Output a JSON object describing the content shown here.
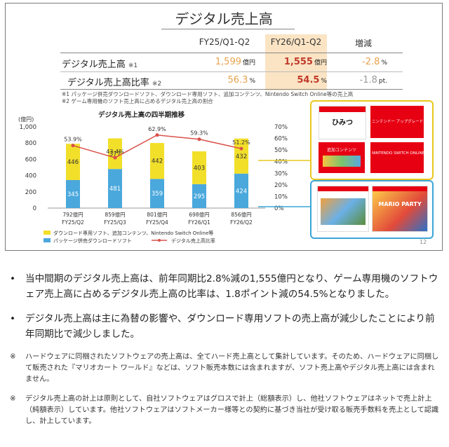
{
  "slide": {
    "title": "デジタル売上高",
    "page_number": "12",
    "table": {
      "columns": [
        "FY25/Q1-Q2",
        "FY26/Q1-Q2",
        "増減"
      ],
      "rows": [
        {
          "label": "デジタル売上高",
          "note": "※1",
          "prev": "1,599",
          "prev_unit": "億円",
          "curr": "1,555",
          "curr_unit": "億円",
          "diff": "-2.8",
          "diff_unit": "%"
        },
        {
          "label": "デジタル売上高比率",
          "note": "※2",
          "prev": "56.3",
          "prev_unit": "%",
          "curr": "54.5",
          "curr_unit": "%",
          "diff": "-1.8",
          "diff_unit": "pt."
        }
      ],
      "footnotes": [
        "※1 パッケージ併売ダウンロードソフト、ダウンロード専用ソフト、追加コンテンツ、Nintendo Switch Online等の売上高",
        "※2 ゲーム専用機のソフト売上高に占めるデジタル売上高の割合"
      ]
    },
    "thumbnails": {
      "top": [
        "ひみつ",
        "ニンテンドー アップグレードパス",
        "追加コンテンツ",
        "NINTENDO SWITCH ONLINE"
      ],
      "bottom": [
        "MARIO PARTY"
      ]
    }
  },
  "chart_data": {
    "type": "bar",
    "title": "デジタル売上高の四半期推移",
    "ylabel": "(億円)",
    "ylim": [
      0,
      1000
    ],
    "y2lim": [
      0,
      70
    ],
    "yticks": [
      "0",
      "200",
      "400",
      "600",
      "800",
      "1,000"
    ],
    "y2ticks": [
      "0%",
      "10%",
      "20%",
      "30%",
      "40%",
      "50%",
      "60%",
      "70%"
    ],
    "categories": [
      "FY25/Q2",
      "FY25/Q3",
      "FY25/Q4",
      "FY26/Q1",
      "FY26/Q2"
    ],
    "totals": [
      "792億円",
      "859億円",
      "801億円",
      "698億円",
      "856億円"
    ],
    "series": [
      {
        "name": "パッケージ併売ダウンロードソフト",
        "color": "#4aa8dc",
        "values": [
          345,
          481,
          359,
          295,
          424
        ]
      },
      {
        "name": "ダウンロード専用ソフト、追加コンテンツ、Nintendo Switch Online等",
        "color": "#f2df2a",
        "values": [
          446,
          377,
          442,
          403,
          432
        ]
      },
      {
        "name": "デジタル売上高比率",
        "type": "line",
        "color": "#d9504a",
        "values": [
          53.9,
          43.4,
          62.9,
          59.3,
          51.2
        ],
        "labels": [
          "53.9%",
          "43.4%",
          "62.9%",
          "59.3%",
          "51.2%"
        ]
      }
    ],
    "legend": "bottom-left"
  },
  "bullets": [
    "当中間期のデジタル売上高は、前年同期比2.8%減の1,555億円となり、ゲーム専用機のソフトウェア売上高に占めるデジタル売上高の比率は、1.8ポイント減の54.5%となりました。",
    "デジタル売上高は主に為替の影響や、ダウンロード専用ソフトの売上高が減少したことにより前年同期比で減少しました。"
  ],
  "notes": [
    {
      "mark": "※",
      "text": "ハードウェアに同梱されたソフトウェアの売上高は、全てハード売上高として集計しています。そのため、ハードウェアに同梱して販売された『マリオカート ワールド』などは、ソフト販売本数には含まれますが、ソフト売上高やデジタル売上高には含まれません。"
    },
    {
      "mark": "※",
      "text": "デジタル売上高の計上は原則として、自社ソフトウェアはグロスで計上（総額表示）し、他社ソフトウェアはネットで売上計上（純額表示）しています。他社ソフトウェアはソフトメーカー様等との契約に基づき当社が受け取る販売手数料を売上として認識し、計上しています。"
    }
  ]
}
